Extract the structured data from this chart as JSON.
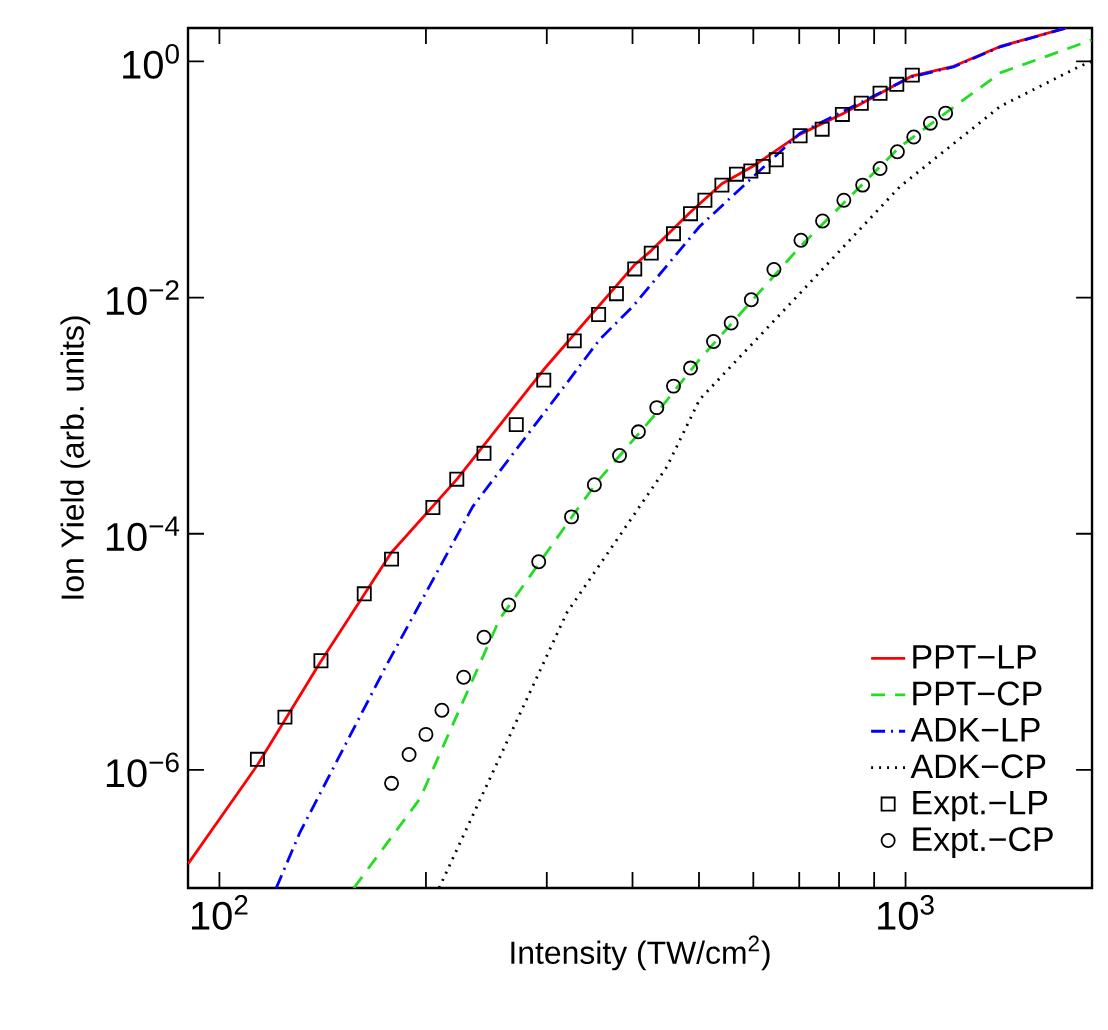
{
  "chart_data": {
    "type": "line",
    "xlabel": "Intensity (TW/cm$^{2}$)",
    "ylabel": "Ion Yield (arb. units)",
    "log": "xy",
    "legend": "bottom right",
    "grid": false,
    "xlim": [
      90,
      1870
    ],
    "ylim": [
      1e-07,
      1.92
    ],
    "xticks": [
      {
        "value": 100,
        "label": "10$^{2}$"
      },
      {
        "value": 200,
        "label": null
      },
      {
        "value": 300,
        "label": null
      },
      {
        "value": 400,
        "label": null
      },
      {
        "value": 500,
        "label": null
      },
      {
        "value": 600,
        "label": null
      },
      {
        "value": 700,
        "label": null
      },
      {
        "value": 800,
        "label": null
      },
      {
        "value": 900,
        "label": null
      },
      {
        "value": 1000,
        "label": "10$^{3}$"
      }
    ],
    "yticks": [
      {
        "value": 1e-06,
        "label": "10$^{−6}$"
      },
      {
        "value": 0.0001,
        "label": "10$^{−4}$"
      },
      {
        "value": 0.01,
        "label": "10$^{−2}$"
      },
      {
        "value": 1,
        "label": "10$^{0}$"
      }
    ],
    "series": [
      {
        "name": "PPT−LP",
        "line_style": "solid",
        "color": "#ff0000",
        "x": [
          90,
          113.6,
          140,
          178,
          222,
          297,
          403,
          426,
          486,
          540,
          600,
          700,
          810,
          1020,
          1175,
          1374,
          1714
        ],
        "values": [
          1.6e-07,
          1.1e-06,
          8e-06,
          6.9e-05,
          0.00029,
          0.00246,
          0.019,
          0.025,
          0.053,
          0.092,
          0.13,
          0.24,
          0.36,
          0.75,
          0.91,
          1.34,
          1.92
        ]
      },
      {
        "name": "PPT−CP",
        "line_style": "dashed",
        "color": "#22dd22",
        "x": [
          157,
          196,
          256,
          335,
          358,
          438,
          501,
          702,
          982,
          1374,
          1867
        ],
        "values": [
          1e-07,
          5.7e-07,
          1.89e-05,
          0.000172,
          0.00029,
          0.00113,
          0.003,
          0.027,
          0.19,
          0.8,
          1.52
        ]
      },
      {
        "name": "ADK−LP",
        "line_style": "dashdot",
        "color": "#0000ff",
        "x": [
          121,
          131,
          175,
          234,
          313,
          358,
          401,
          501,
          702,
          1020,
          1175,
          1374,
          1714
        ],
        "values": [
          1e-07,
          2.95e-07,
          7.6e-06,
          0.00017,
          0.00156,
          0.0044,
          0.0085,
          0.04,
          0.247,
          0.74,
          0.9,
          1.33,
          1.92
        ]
      },
      {
        "name": "ADK−CP",
        "line_style": "dotted",
        "color": "#000000",
        "x": [
          209,
          321,
          449,
          501,
          702,
          982,
          1374,
          1795,
          1867
        ],
        "values": [
          1e-07,
          2.15e-05,
          0.00037,
          0.00137,
          0.0109,
          0.0875,
          0.416,
          0.91,
          1.0
        ]
      },
      {
        "name": "Expt.−LP",
        "type": "scatter",
        "marker": "square",
        "color": "#000000",
        "x": [
          113.6,
          124.6,
          140.6,
          162.6,
          178.2,
          204.7,
          221.8,
          243,
          270.8,
          297,
          329,
          357,
          379,
          403,
          426,
          459,
          486,
          510,
          540,
          567,
          595,
          620,
          648,
          702,
          756,
          809,
          862,
          918,
          971,
          1023
        ],
        "values": [
          1.23e-06,
          2.8e-06,
          8.4e-06,
          3.1e-05,
          6.1e-05,
          0.000167,
          0.00029,
          0.00048,
          0.00084,
          0.002,
          0.0043,
          0.0072,
          0.0108,
          0.0175,
          0.0238,
          0.0348,
          0.0514,
          0.0667,
          0.0897,
          0.111,
          0.118,
          0.129,
          0.147,
          0.235,
          0.267,
          0.356,
          0.443,
          0.538,
          0.64,
          0.766
        ]
      },
      {
        "name": "Expt.−CP",
        "type": "scatter",
        "marker": "circle",
        "color": "#000000",
        "x": [
          178.2,
          189,
          200,
          211,
          227,
          243,
          264,
          292,
          326,
          352,
          383,
          408,
          434,
          459,
          486,
          525,
          557,
          596,
          643,
          704,
          757,
          813,
          866,
          918,
          973,
          1028,
          1087,
          1144
        ],
        "values": [
          7.7e-07,
          1.35e-06,
          2e-06,
          3.2e-06,
          6.1e-06,
          1.33e-05,
          2.5e-05,
          5.8e-05,
          0.000139,
          0.00026,
          0.00046,
          0.00073,
          0.00117,
          0.00178,
          0.00253,
          0.00425,
          0.0061,
          0.0096,
          0.0173,
          0.0306,
          0.0445,
          0.0667,
          0.0897,
          0.124,
          0.172,
          0.229,
          0.3,
          0.365
        ]
      }
    ]
  }
}
